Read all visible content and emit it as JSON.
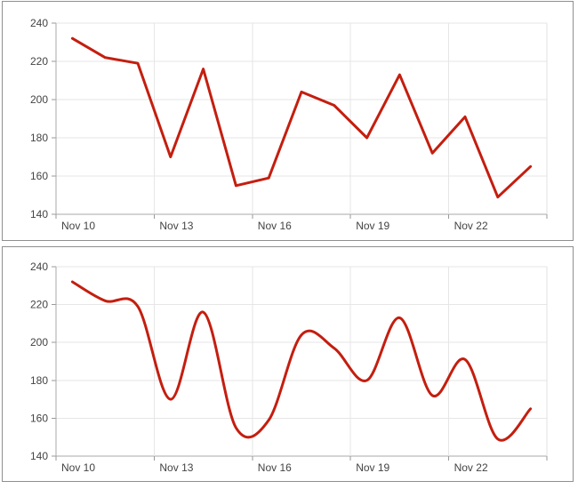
{
  "background_color": "#ffffff",
  "style": {
    "series_color": "#c41e0f",
    "grid_color": "#e6e6e6",
    "plot_edge_color": "#e2e2e2",
    "axis_color": "#a8a8a8",
    "tick_color": "#999999",
    "label_color": "#434343",
    "panel_border_color": "#8f8f8f",
    "panel_background": "#ffffff",
    "line_width": 3
  },
  "chart_data": [
    {
      "id": "top-chart",
      "type": "line",
      "interpolation": "linear",
      "title": "",
      "xlabel": "",
      "ylabel": "",
      "legend": "none",
      "grid": true,
      "x": [
        "Nov 10",
        "Nov 11",
        "Nov 12",
        "Nov 13",
        "Nov 14",
        "Nov 15",
        "Nov 16",
        "Nov 17",
        "Nov 18",
        "Nov 19",
        "Nov 20",
        "Nov 21",
        "Nov 22",
        "Nov 23",
        "Nov 24"
      ],
      "values": [
        232,
        222,
        219,
        170,
        216,
        155,
        159,
        204,
        197,
        180,
        213,
        172,
        191,
        149,
        165
      ],
      "x_tick_labels": [
        "Nov 10",
        "Nov 13",
        "Nov 16",
        "Nov 19",
        "Nov 22"
      ],
      "y_tick_labels": [
        "240",
        "220",
        "200",
        "180",
        "160",
        "140"
      ],
      "ylim": [
        140,
        240
      ],
      "y_step": 20
    },
    {
      "id": "bottom-chart",
      "type": "line",
      "interpolation": "spline",
      "title": "",
      "xlabel": "",
      "ylabel": "",
      "legend": "none",
      "grid": true,
      "x": [
        "Nov 10",
        "Nov 11",
        "Nov 12",
        "Nov 13",
        "Nov 14",
        "Nov 15",
        "Nov 16",
        "Nov 17",
        "Nov 18",
        "Nov 19",
        "Nov 20",
        "Nov 21",
        "Nov 22",
        "Nov 23",
        "Nov 24"
      ],
      "values": [
        232,
        222,
        219,
        170,
        216,
        155,
        159,
        204,
        197,
        180,
        213,
        172,
        191,
        149,
        165
      ],
      "x_tick_labels": [
        "Nov 10",
        "Nov 13",
        "Nov 16",
        "Nov 19",
        "Nov 22"
      ],
      "y_tick_labels": [
        "240",
        "220",
        "200",
        "180",
        "160",
        "140"
      ],
      "ylim": [
        140,
        240
      ],
      "y_step": 20
    }
  ]
}
